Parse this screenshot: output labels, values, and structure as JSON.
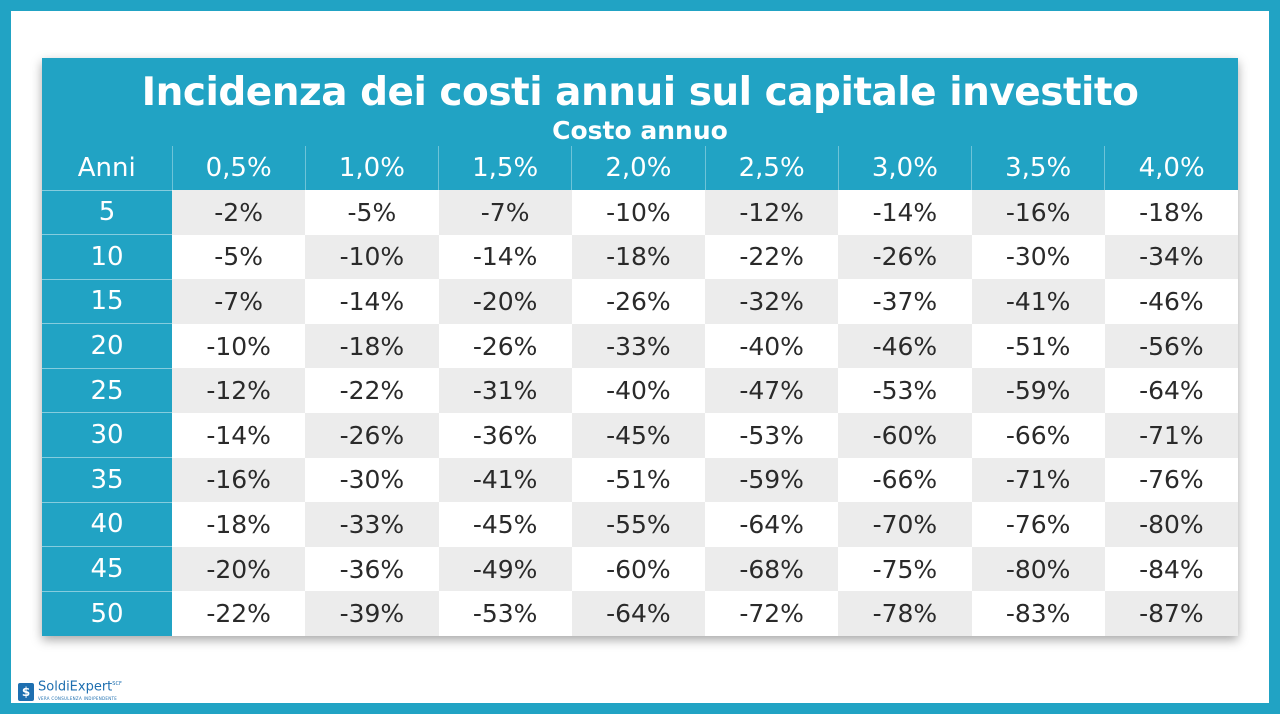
{
  "title": "Incidenza dei costi annui sul capitale investito",
  "subtitle": "Costo annuo",
  "header": {
    "anni_label": "Anni",
    "costs": [
      "0,5%",
      "1,0%",
      "1,5%",
      "2,0%",
      "2,5%",
      "3,0%",
      "3,5%",
      "4,0%"
    ]
  },
  "rows": [
    {
      "anni": "5",
      "values": [
        "-2%",
        "-5%",
        "-7%",
        "-10%",
        "-12%",
        "-14%",
        "-16%",
        "-18%"
      ]
    },
    {
      "anni": "10",
      "values": [
        "-5%",
        "-10%",
        "-14%",
        "-18%",
        "-22%",
        "-26%",
        "-30%",
        "-34%"
      ]
    },
    {
      "anni": "15",
      "values": [
        "-7%",
        "-14%",
        "-20%",
        "-26%",
        "-32%",
        "-37%",
        "-41%",
        "-46%"
      ]
    },
    {
      "anni": "20",
      "values": [
        "-10%",
        "-18%",
        "-26%",
        "-33%",
        "-40%",
        "-46%",
        "-51%",
        "-56%"
      ]
    },
    {
      "anni": "25",
      "values": [
        "-12%",
        "-22%",
        "-31%",
        "-40%",
        "-47%",
        "-53%",
        "-59%",
        "-64%"
      ]
    },
    {
      "anni": "30",
      "values": [
        "-14%",
        "-26%",
        "-36%",
        "-45%",
        "-53%",
        "-60%",
        "-66%",
        "-71%"
      ]
    },
    {
      "anni": "35",
      "values": [
        "-16%",
        "-30%",
        "-41%",
        "-51%",
        "-59%",
        "-66%",
        "-71%",
        "-76%"
      ]
    },
    {
      "anni": "40",
      "values": [
        "-18%",
        "-33%",
        "-45%",
        "-55%",
        "-64%",
        "-70%",
        "-76%",
        "-80%"
      ]
    },
    {
      "anni": "45",
      "values": [
        "-20%",
        "-36%",
        "-49%",
        "-60%",
        "-68%",
        "-75%",
        "-80%",
        "-84%"
      ]
    },
    {
      "anni": "50",
      "values": [
        "-22%",
        "-39%",
        "-53%",
        "-64%",
        "-72%",
        "-78%",
        "-83%",
        "-87%"
      ]
    }
  ],
  "logo": {
    "icon_glyph": "$",
    "name": "SoldiExpert",
    "mark": "SCF",
    "tagline": "VERA CONSULENZA INDIPENDENTE"
  },
  "colors": {
    "accent": "#21a3c4",
    "cell_alt": "#ececec",
    "text": "#2a2a2a"
  }
}
